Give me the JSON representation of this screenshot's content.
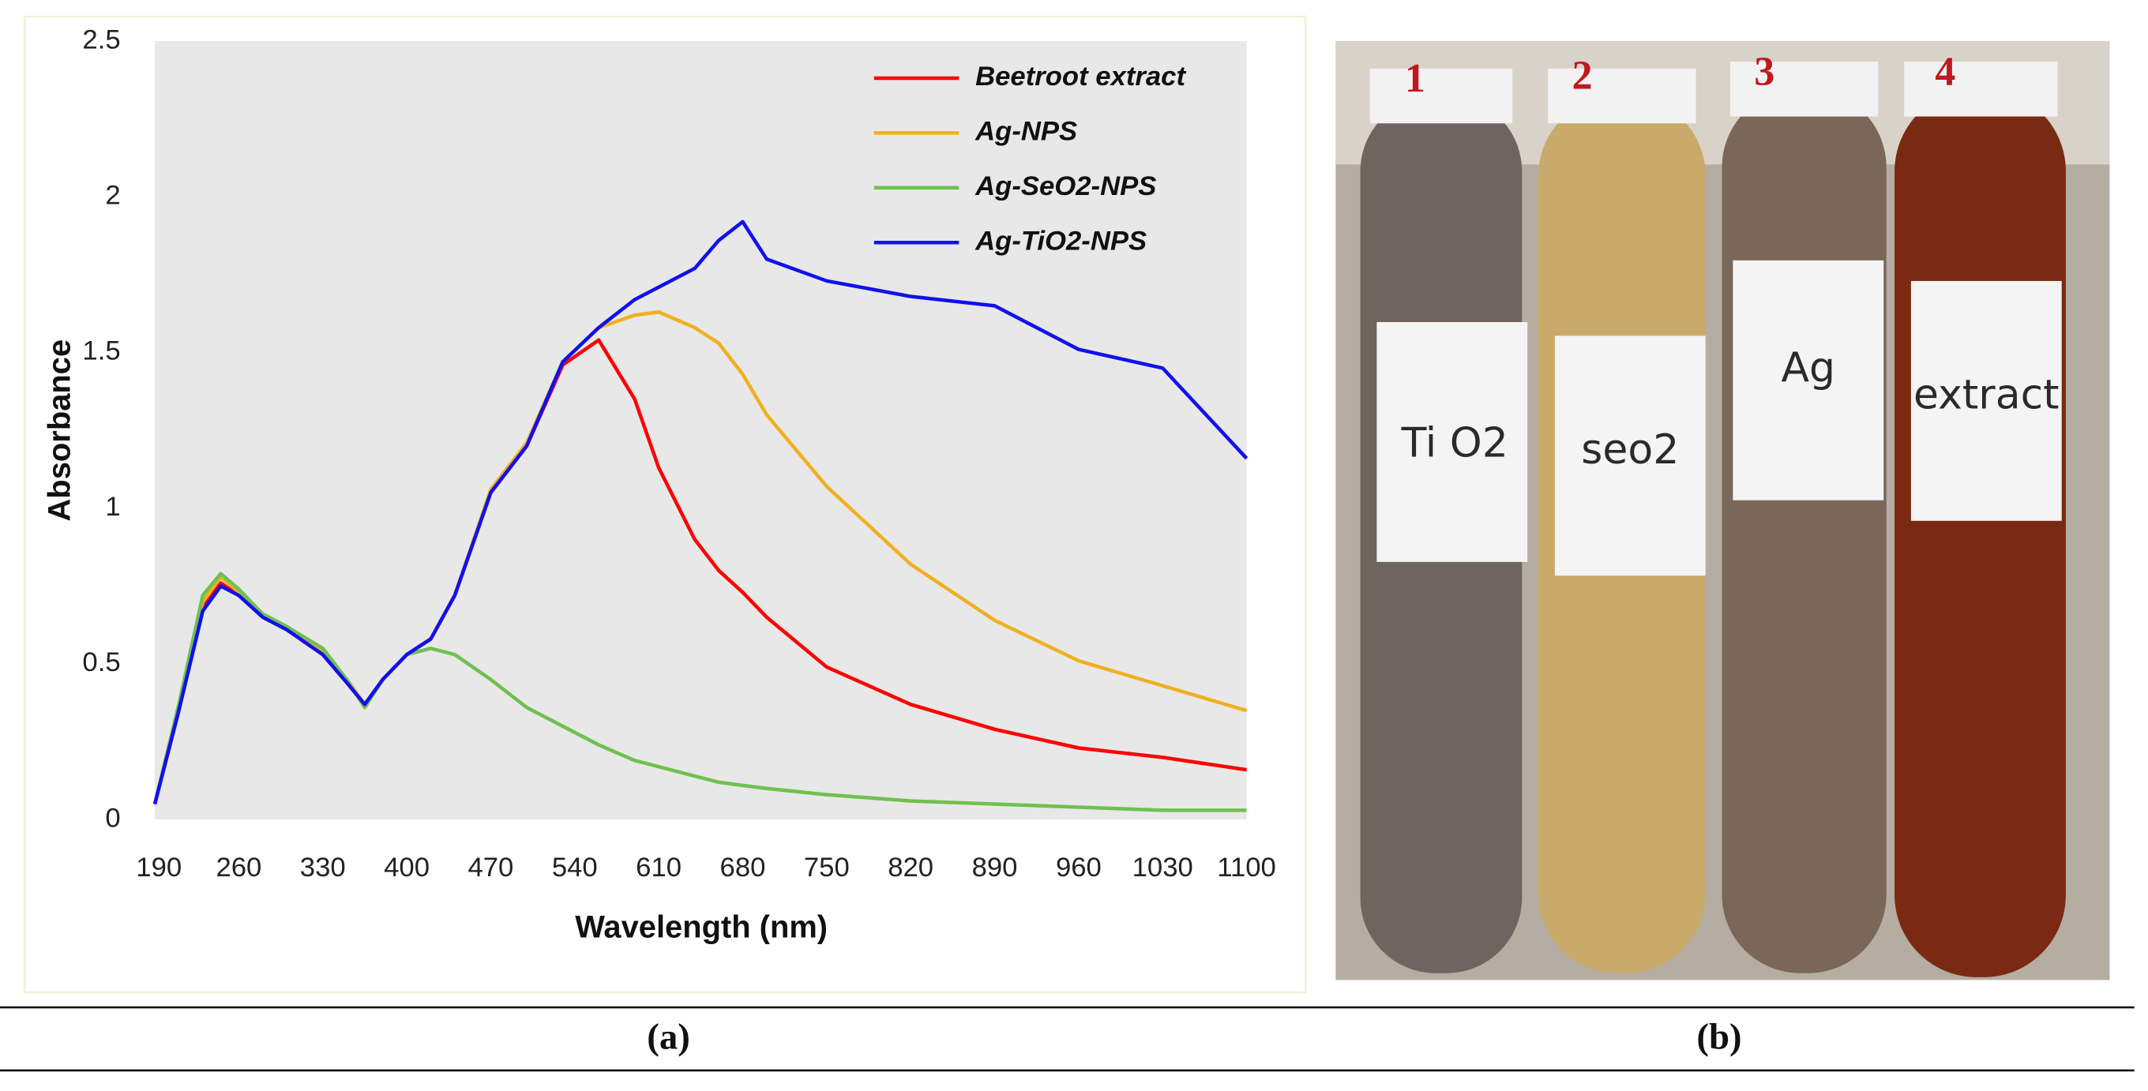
{
  "chart_data": {
    "type": "line",
    "xlabel": "Wavelength (nm)",
    "ylabel": "Absorbance",
    "xlim": [
      190,
      1100
    ],
    "ylim": [
      0,
      2.5
    ],
    "xticks": [
      190,
      260,
      330,
      400,
      470,
      540,
      610,
      680,
      750,
      820,
      890,
      960,
      1030,
      1100
    ],
    "yticks": [
      0,
      0.5,
      1,
      1.5,
      2,
      2.5
    ],
    "grid": false,
    "legend": "upper right",
    "x": [
      190,
      210,
      230,
      245,
      260,
      280,
      300,
      330,
      350,
      365,
      380,
      400,
      420,
      440,
      470,
      500,
      530,
      560,
      590,
      610,
      640,
      660,
      680,
      700,
      750,
      820,
      890,
      960,
      1030,
      1100
    ],
    "series": [
      {
        "name": "Beetroot extract",
        "color": "#ff0000",
        "values": [
          0.05,
          0.35,
          0.68,
          0.76,
          0.72,
          0.65,
          0.61,
          0.53,
          0.44,
          0.37,
          0.45,
          0.53,
          0.58,
          0.72,
          1.05,
          1.2,
          1.46,
          1.54,
          1.35,
          1.13,
          0.9,
          0.8,
          0.73,
          0.65,
          0.49,
          0.37,
          0.29,
          0.23,
          0.2,
          0.16
        ]
      },
      {
        "name": "Ag-NPS",
        "color": "#f0b020",
        "values": [
          0.05,
          0.36,
          0.7,
          0.78,
          0.73,
          0.66,
          0.62,
          0.54,
          0.45,
          0.37,
          0.45,
          0.53,
          0.58,
          0.72,
          1.06,
          1.21,
          1.47,
          1.58,
          1.62,
          1.63,
          1.58,
          1.53,
          1.43,
          1.3,
          1.07,
          0.82,
          0.64,
          0.51,
          0.43,
          0.35
        ]
      },
      {
        "name": "Ag-SeO2-NPS",
        "color": "#70c050",
        "values": [
          0.05,
          0.37,
          0.72,
          0.79,
          0.74,
          0.66,
          0.62,
          0.55,
          0.45,
          0.36,
          0.45,
          0.53,
          0.55,
          0.53,
          0.45,
          0.36,
          0.3,
          0.24,
          0.19,
          0.17,
          0.14,
          0.12,
          0.11,
          0.1,
          0.08,
          0.06,
          0.05,
          0.04,
          0.03,
          0.03
        ]
      },
      {
        "name": "Ag-TiO2-NPS",
        "color": "#1010f0",
        "values": [
          0.05,
          0.35,
          0.67,
          0.75,
          0.72,
          0.65,
          0.61,
          0.53,
          0.44,
          0.37,
          0.45,
          0.53,
          0.58,
          0.72,
          1.05,
          1.2,
          1.47,
          1.58,
          1.67,
          1.71,
          1.77,
          1.86,
          1.92,
          1.8,
          1.73,
          1.68,
          1.65,
          1.51,
          1.45,
          1.16
        ]
      }
    ]
  },
  "panels": {
    "a": "(a)",
    "b": "(b)"
  },
  "photo": {
    "tubes": [
      {
        "number": "1",
        "label": "Ti O2"
      },
      {
        "number": "2",
        "label": "seo2"
      },
      {
        "number": "3",
        "label": "Ag"
      },
      {
        "number": "4",
        "label": "extract"
      }
    ]
  }
}
